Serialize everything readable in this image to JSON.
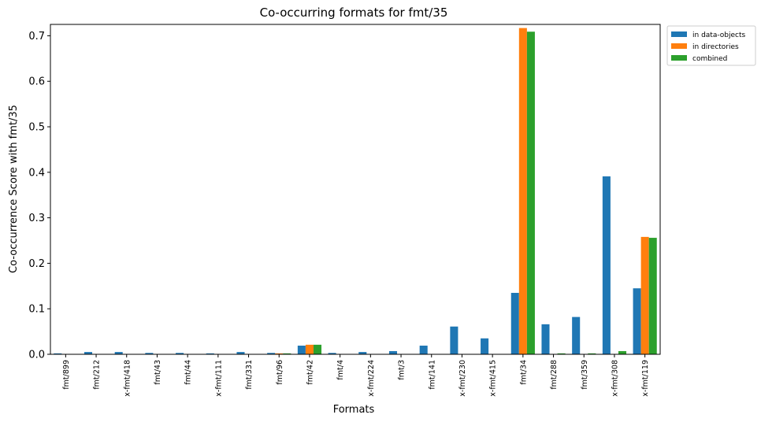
{
  "chart_data": {
    "type": "bar",
    "title": "Co-occurring formats for fmt/35",
    "xlabel": "Formats",
    "ylabel": "Co-occurrence Score with fmt/35",
    "ylim": [
      0,
      0.725
    ],
    "yticks": [
      "0.0",
      "0.1",
      "0.2",
      "0.3",
      "0.4",
      "0.5",
      "0.6",
      "0.7"
    ],
    "ytick_values": [
      0,
      0.1,
      0.2,
      0.3,
      0.4,
      0.5,
      0.6,
      0.7
    ],
    "grid": false,
    "legend_position": "outside-top-right",
    "categories": [
      "fmt/899",
      "fmt/212",
      "x-fmt/418",
      "fmt/43",
      "fmt/44",
      "x-fmt/111",
      "fmt/331",
      "fmt/96",
      "fmt/42",
      "fmt/4",
      "x-fmt/224",
      "fmt/3",
      "fmt/141",
      "x-fmt/230",
      "x-fmt/415",
      "fmt/34",
      "fmt/288",
      "fmt/359",
      "x-fmt/308",
      "x-fmt/119"
    ],
    "series": [
      {
        "name": "in data-objects",
        "color": "#1f77b4",
        "values": [
          0.002,
          0.005,
          0.005,
          0.003,
          0.003,
          0.002,
          0.005,
          0.003,
          0.019,
          0.003,
          0.005,
          0.007,
          0.019,
          0.061,
          0.035,
          0.135,
          0.066,
          0.082,
          0.391,
          0.145
        ]
      },
      {
        "name": "in directories",
        "color": "#ff7f0e",
        "values": [
          0,
          0,
          0,
          0,
          0,
          0,
          0,
          0.002,
          0.021,
          0,
          0,
          0,
          0,
          0,
          0,
          0.717,
          0,
          0,
          0,
          0.258
        ]
      },
      {
        "name": "combined",
        "color": "#2ca02c",
        "values": [
          0,
          0,
          0,
          0,
          0,
          0,
          0,
          0.002,
          0.021,
          0,
          0,
          0,
          0,
          0,
          0,
          0.709,
          0.002,
          0.002,
          0.007,
          0.256
        ]
      }
    ]
  }
}
